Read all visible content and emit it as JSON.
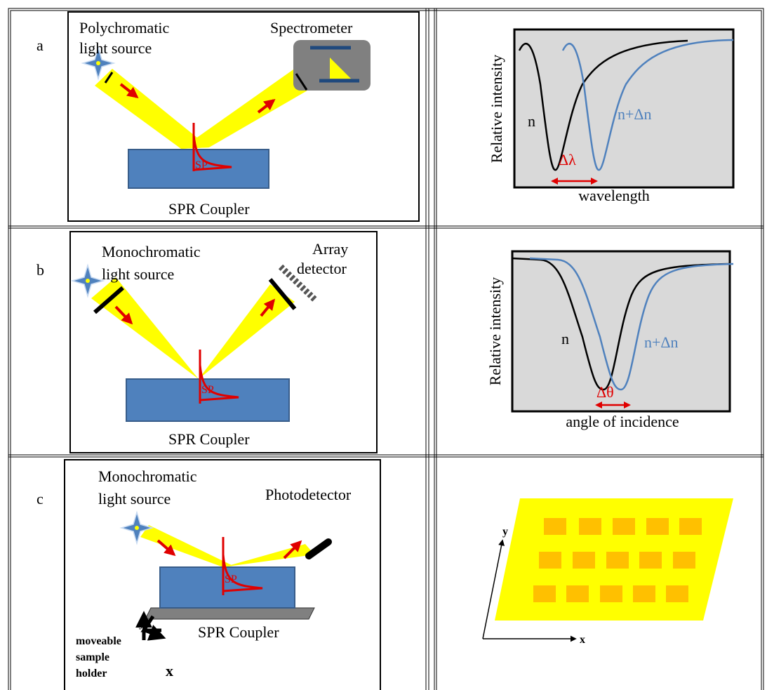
{
  "rows": [
    {
      "label": "a",
      "setup": {
        "source": [
          "Polychromatic",
          "light source"
        ],
        "detector": [
          "Spectrometer"
        ],
        "sp": "SP",
        "coupler": "SPR Coupler"
      },
      "graph": {
        "y_label": "Relative intensity",
        "curve_1": "n",
        "curve_2": "n+Δn",
        "shift": "Δλ",
        "x_label": "wavelength"
      }
    },
    {
      "label": "b",
      "setup": {
        "source": [
          "Monochromatic",
          "light source"
        ],
        "detector": [
          "Array",
          "detector"
        ],
        "sp": "SP",
        "coupler": "SPR Coupler"
      },
      "graph": {
        "y_label": "Relative intensity",
        "curve_1": "n",
        "curve_2": "n+Δn",
        "shift": "Δθ",
        "x_label": "angle of incidence"
      }
    },
    {
      "label": "c",
      "setup": {
        "source": [
          "Monochromatic",
          "light source"
        ],
        "detector": [
          "Photodetector"
        ],
        "sp": "SP",
        "coupler": "SPR Coupler",
        "holder": [
          "moveable",
          "sample",
          "holder"
        ],
        "axis_y": "y",
        "axis_x": "x"
      },
      "graph": {
        "axis_y": "y",
        "axis_x": "x"
      }
    }
  ]
}
